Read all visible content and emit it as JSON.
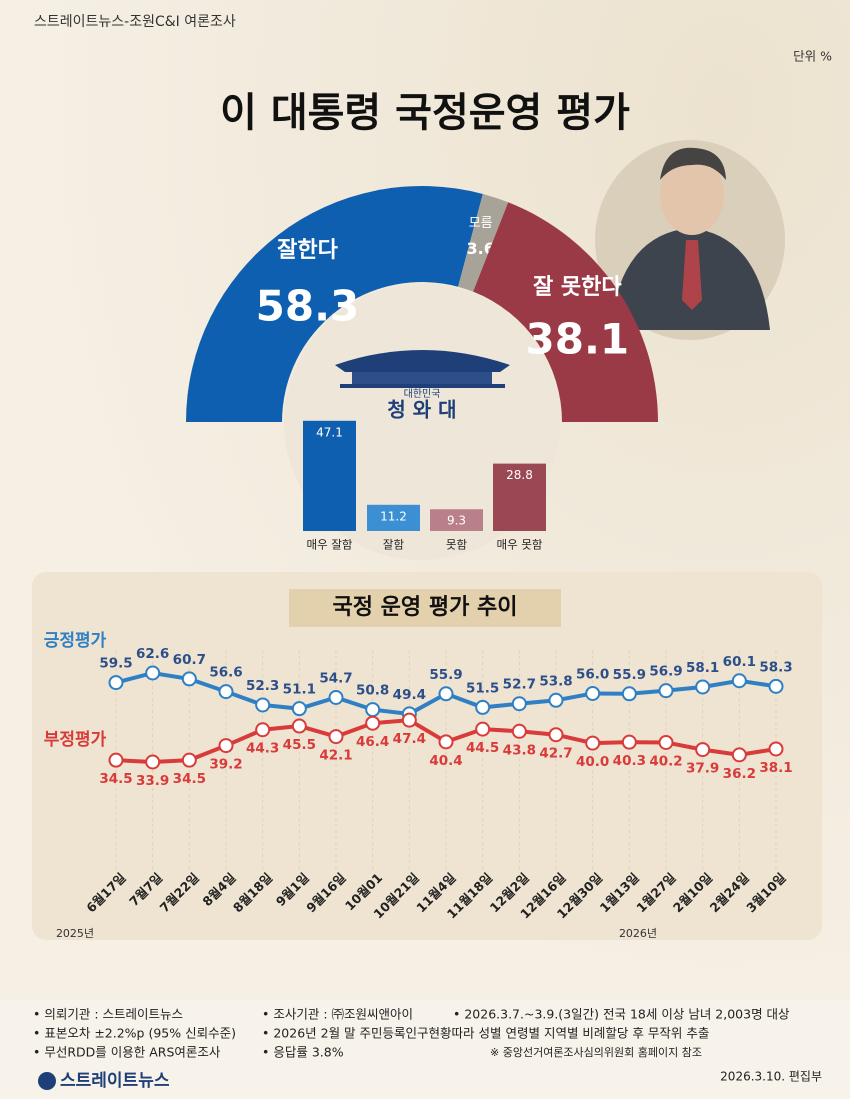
{
  "header": {
    "source": "스트레이트뉴스-조원C&I 여론조사",
    "unit": "단위 %"
  },
  "logo": {
    "top": "대한민국",
    "main": "청 와 대"
  },
  "chart_data": [
    {
      "type": "halfdonut",
      "title": "이 대통령 국정운영 평가",
      "categories": [
        "잘한다",
        "모름",
        "잘 못한다"
      ],
      "values": [
        58.3,
        3.6,
        38.1
      ],
      "colors": [
        "#0f5fb0",
        "#a8a398",
        "#9a3a46"
      ]
    },
    {
      "type": "bar",
      "categories": [
        "매우 잘함",
        "잘함",
        "못함",
        "매우 못함"
      ],
      "values": [
        47.1,
        11.2,
        9.3,
        28.8
      ],
      "colors": [
        "#0f5fb0",
        "#3b8fd2",
        "#b98089",
        "#9a4853"
      ]
    },
    {
      "type": "line",
      "title": "국정 운영 평가 추이",
      "categories": [
        "6월17일",
        "7월7일",
        "7월22일",
        "8월4일",
        "8월18일",
        "9월1일",
        "9월16일",
        "10월01",
        "10월21일",
        "11월4일",
        "11월18일",
        "12월2일",
        "12월16일",
        "12월30일",
        "1월13일",
        "1월27일",
        "2월10일",
        "2월24일",
        "3월10일"
      ],
      "annotations": [
        "2025년",
        "2026년"
      ],
      "series": [
        {
          "name": "긍정평가",
          "color": "#2f7fc4",
          "values": [
            59.5,
            62.6,
            60.7,
            56.6,
            52.3,
            51.1,
            54.7,
            50.8,
            49.4,
            55.9,
            51.5,
            52.7,
            53.8,
            56.0,
            55.9,
            56.9,
            58.1,
            60.1,
            58.3
          ],
          "value_labels": [
            "59.5",
            "62.6",
            "60.7",
            "56.6",
            "52.3",
            "51.1",
            "54.7",
            "50.8",
            "49.4",
            "55.9",
            "51.5",
            "52.7",
            "53.8",
            "56.0",
            "55.9",
            "56.9",
            "58.1",
            "60.1",
            "58.3"
          ]
        },
        {
          "name": "부정평가",
          "color": "#d93a3a",
          "values": [
            34.5,
            33.9,
            34.5,
            39.2,
            44.3,
            45.5,
            42.1,
            46.4,
            47.4,
            40.4,
            44.5,
            43.8,
            42.7,
            40.0,
            40.3,
            40.2,
            37.9,
            36.2,
            38.1
          ],
          "value_labels": [
            "34.5",
            "33.9",
            "34.5",
            "39.2",
            "44.3",
            "45.5",
            "42.1",
            "46.4",
            "47.4",
            "40.4",
            "44.5",
            "43.8",
            "42.7",
            "40.0",
            "40.3",
            "40.2",
            "37.9",
            "36.2",
            "38.1"
          ]
        }
      ]
    }
  ],
  "footer": {
    "items": [
      "• 의뢰기관 : 스트레이트뉴스",
      "• 조사기관 : ㈜조원씨앤아이",
      "• 2026.3.7.~3.9.(3일간) 전국 18세 이상 남녀 2,003명 대상",
      "• 표본오차 ±2.2%p (95% 신뢰수준)",
      "• 2026년 2월 말 주민등록인구현황따라 성별 연령별 지역별 비례할당 후 무작위 추출",
      "• 무선RDD를 이용한 ARS여론조사",
      "• 응답률 3.8%"
    ],
    "note": "※ 중앙선거여론조사심의위원회 홈페이지 참조",
    "brand": "스트레이트뉴스",
    "date": "2026.3.10. 편집부"
  }
}
